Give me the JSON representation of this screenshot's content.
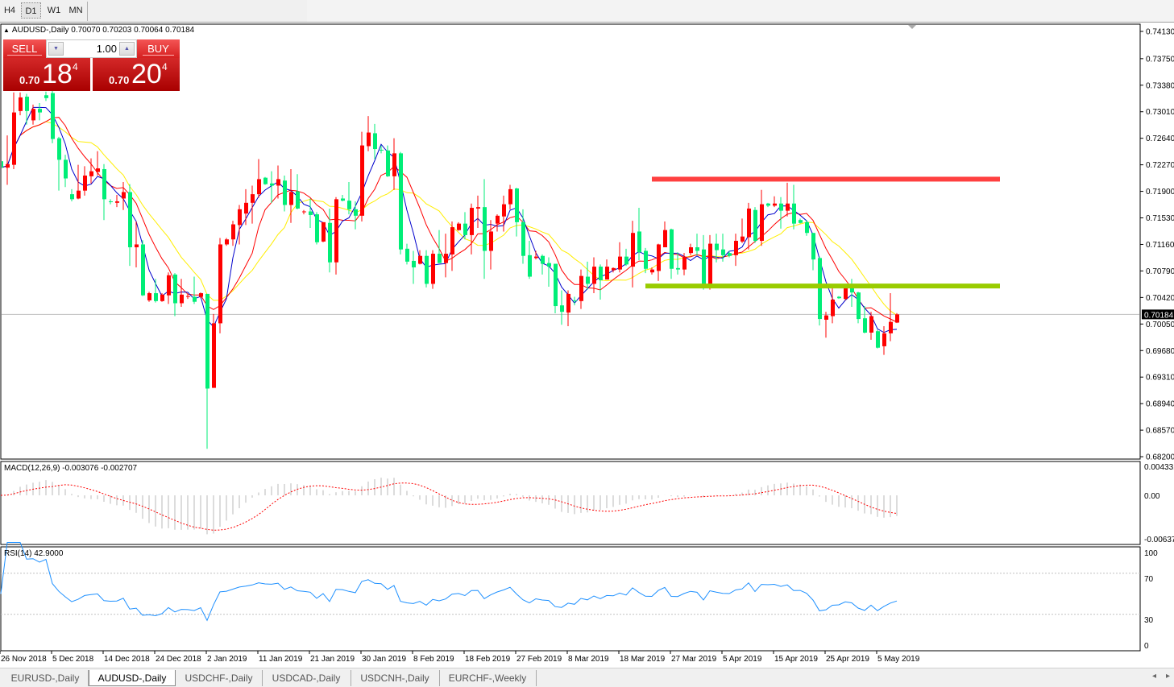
{
  "toolbar": {
    "timeframes": [
      {
        "label": "H4"
      },
      {
        "label": "D1",
        "active": true
      },
      {
        "label": "W1"
      },
      {
        "label": "MN"
      }
    ]
  },
  "chart": {
    "header": {
      "symbol": "AUDUSD-,Daily",
      "open": "0.70070",
      "high": "0.70203",
      "low": "0.70064",
      "close": "0.70184"
    },
    "trade_panel": {
      "sell_label": "SELL",
      "buy_label": "BUY",
      "lot": "1.00",
      "sell_prefix": "0.70",
      "sell_big": "18",
      "sell_sup": "4",
      "buy_prefix": "0.70",
      "buy_big": "20",
      "buy_sup": "4"
    },
    "current_price": "0.70184",
    "price_axis": [
      "0.74130",
      "0.73750",
      "0.73380",
      "0.73010",
      "0.72640",
      "0.72270",
      "0.71900",
      "0.71530",
      "0.71160",
      "0.70790",
      "0.70420",
      "0.70050",
      "0.69680",
      "0.69310",
      "0.68940",
      "0.68570",
      "0.68200"
    ],
    "macd": {
      "label": "MACD(12,26,9) -0.003076 -0.002707",
      "axis": [
        "0.004331",
        "0.00",
        "-0.00637"
      ]
    },
    "rsi": {
      "label": "RSI(14) 42.9000",
      "axis": [
        "100",
        "70",
        "30",
        "0"
      ],
      "levels": [
        70,
        30
      ]
    },
    "date_axis": [
      "26 Nov 2018",
      "5 Dec 2018",
      "14 Dec 2018",
      "24 Dec 2018",
      "2 Jan 2019",
      "11 Jan 2019",
      "21 Jan 2019",
      "30 Jan 2019",
      "8 Feb 2019",
      "18 Feb 2019",
      "27 Feb 2019",
      "8 Mar 2019",
      "18 Mar 2019",
      "27 Mar 2019",
      "5 Apr 2019",
      "15 Apr 2019",
      "25 Apr 2019",
      "5 May 2019"
    ],
    "horizontal_lines": [
      {
        "price": 0.7207,
        "color": "#ff4040",
        "from_bar": 101,
        "to_bar": 155
      },
      {
        "price": 0.7058,
        "color": "#99cc00",
        "from_bar": 100,
        "to_bar": 155
      }
    ],
    "colors": {
      "bull": "#ff0000",
      "bear": "#00ee77",
      "ma_fast": "#0000cc",
      "ma_mid": "#ff0000",
      "ma_slow": "#ffee00",
      "macd_hist": "#b8b8b8",
      "macd_signal": "#ff0000",
      "rsi": "#1e90ff"
    }
  },
  "chart_data": {
    "type": "candlestick",
    "symbol": "AUDUSD-,Daily",
    "ylim": [
      0.682,
      0.7413
    ],
    "ohlc": [
      [
        0.7232,
        0.7275,
        0.7212,
        0.7223
      ],
      [
        0.7223,
        0.7268,
        0.7199,
        0.7228
      ],
      [
        0.7227,
        0.7328,
        0.7221,
        0.73
      ],
      [
        0.7302,
        0.7328,
        0.7296,
        0.7321
      ],
      [
        0.7322,
        0.7326,
        0.7283,
        0.7302
      ],
      [
        0.7289,
        0.7311,
        0.7283,
        0.7305
      ],
      [
        0.7305,
        0.7313,
        0.7289,
        0.73
      ],
      [
        0.7324,
        0.7329,
        0.7316,
        0.732
      ],
      [
        0.7327,
        0.733,
        0.7257,
        0.7263
      ],
      [
        0.7264,
        0.7266,
        0.7191,
        0.7234
      ],
      [
        0.7234,
        0.7241,
        0.7196,
        0.7208
      ],
      [
        0.7186,
        0.7193,
        0.7176,
        0.7179
      ],
      [
        0.718,
        0.7227,
        0.7179,
        0.7191
      ],
      [
        0.7191,
        0.7225,
        0.7184,
        0.7212
      ],
      [
        0.7211,
        0.7236,
        0.7201,
        0.7218
      ],
      [
        0.7217,
        0.7246,
        0.7212,
        0.7222
      ],
      [
        0.7221,
        0.7228,
        0.715,
        0.7179
      ],
      [
        0.7176,
        0.7179,
        0.7172,
        0.7175
      ],
      [
        0.7174,
        0.7185,
        0.7168,
        0.7176
      ],
      [
        0.718,
        0.7203,
        0.7164,
        0.7189
      ],
      [
        0.7189,
        0.72,
        0.7086,
        0.7112
      ],
      [
        0.7112,
        0.7148,
        0.7084,
        0.7116
      ],
      [
        0.7116,
        0.7122,
        0.7044,
        0.7045
      ],
      [
        0.7038,
        0.705,
        0.7036,
        0.7048
      ],
      [
        0.7048,
        0.7068,
        0.7035,
        0.7037
      ],
      [
        0.7037,
        0.7048,
        0.7036,
        0.7046
      ],
      [
        0.7045,
        0.7077,
        0.7033,
        0.7073
      ],
      [
        0.7074,
        0.7076,
        0.7016,
        0.7034
      ],
      [
        0.7034,
        0.7068,
        0.7029,
        0.7046
      ],
      [
        0.7043,
        0.7047,
        0.704,
        0.7044
      ],
      [
        0.7043,
        0.7071,
        0.7033,
        0.7036
      ],
      [
        0.7043,
        0.7049,
        0.7041,
        0.7048
      ],
      [
        0.7047,
        0.7047,
        0.6831,
        0.6915
      ],
      [
        0.6916,
        0.7019,
        0.6916,
        0.7006
      ],
      [
        0.7006,
        0.7125,
        0.6992,
        0.7116
      ],
      [
        0.7116,
        0.7125,
        0.7114,
        0.7123
      ],
      [
        0.7123,
        0.7149,
        0.7114,
        0.7144
      ],
      [
        0.7143,
        0.7171,
        0.7116,
        0.7165
      ],
      [
        0.7159,
        0.7193,
        0.7143,
        0.7174
      ],
      [
        0.7174,
        0.7198,
        0.7145,
        0.7186
      ],
      [
        0.7186,
        0.7235,
        0.7181,
        0.7207
      ],
      [
        0.7209,
        0.721,
        0.7199,
        0.72
      ],
      [
        0.7201,
        0.7218,
        0.7174,
        0.7198
      ],
      [
        0.7198,
        0.7226,
        0.718,
        0.7207
      ],
      [
        0.7205,
        0.7212,
        0.7162,
        0.7171
      ],
      [
        0.7171,
        0.7221,
        0.7146,
        0.7189
      ],
      [
        0.719,
        0.7214,
        0.7165,
        0.7166
      ],
      [
        0.7161,
        0.7164,
        0.7158,
        0.7162
      ],
      [
        0.7162,
        0.718,
        0.7139,
        0.7157
      ],
      [
        0.7158,
        0.7161,
        0.7116,
        0.7119
      ],
      [
        0.712,
        0.7147,
        0.7119,
        0.7147
      ],
      [
        0.7146,
        0.7166,
        0.7077,
        0.7091
      ],
      [
        0.7091,
        0.7182,
        0.7074,
        0.7179
      ],
      [
        0.718,
        0.7185,
        0.7176,
        0.7177
      ],
      [
        0.7177,
        0.7203,
        0.7158,
        0.7165
      ],
      [
        0.7165,
        0.7176,
        0.7137,
        0.7156
      ],
      [
        0.7156,
        0.7273,
        0.7148,
        0.7254
      ],
      [
        0.7253,
        0.7295,
        0.7246,
        0.7272
      ],
      [
        0.7271,
        0.7284,
        0.7235,
        0.7249
      ],
      [
        0.7248,
        0.7254,
        0.7243,
        0.7247
      ],
      [
        0.7247,
        0.7254,
        0.721,
        0.7211
      ],
      [
        0.7211,
        0.7264,
        0.7192,
        0.7243
      ],
      [
        0.7243,
        0.7245,
        0.7102,
        0.7109
      ],
      [
        0.711,
        0.7117,
        0.7088,
        0.7092
      ],
      [
        0.7093,
        0.7107,
        0.7061,
        0.7084
      ],
      [
        0.7089,
        0.7108,
        0.7088,
        0.71
      ],
      [
        0.71,
        0.7108,
        0.7056,
        0.7061
      ],
      [
        0.7061,
        0.7108,
        0.7054,
        0.7103
      ],
      [
        0.7103,
        0.7136,
        0.709,
        0.709
      ],
      [
        0.709,
        0.7131,
        0.707,
        0.7103
      ],
      [
        0.7102,
        0.7148,
        0.7079,
        0.714
      ],
      [
        0.7136,
        0.7147,
        0.7135,
        0.7145
      ],
      [
        0.7145,
        0.7161,
        0.7123,
        0.7129
      ],
      [
        0.7129,
        0.7173,
        0.7102,
        0.7167
      ],
      [
        0.7166,
        0.7184,
        0.7139,
        0.7168
      ],
      [
        0.7168,
        0.7207,
        0.7068,
        0.7107
      ],
      [
        0.7107,
        0.715,
        0.7081,
        0.7134
      ],
      [
        0.7145,
        0.7158,
        0.7134,
        0.7156
      ],
      [
        0.7155,
        0.7184,
        0.7134,
        0.7172
      ],
      [
        0.7172,
        0.7199,
        0.7165,
        0.7193
      ],
      [
        0.7194,
        0.7195,
        0.7127,
        0.7147
      ],
      [
        0.7147,
        0.7165,
        0.7089,
        0.71
      ],
      [
        0.7101,
        0.7121,
        0.7068,
        0.7071
      ],
      [
        0.7097,
        0.7107,
        0.7095,
        0.7099
      ],
      [
        0.71,
        0.7102,
        0.7074,
        0.7089
      ],
      [
        0.709,
        0.7098,
        0.7057,
        0.7085
      ],
      [
        0.7089,
        0.7089,
        0.702,
        0.703
      ],
      [
        0.7031,
        0.7052,
        0.7004,
        0.7022
      ],
      [
        0.7021,
        0.7052,
        0.7002,
        0.7047
      ],
      [
        0.7038,
        0.7043,
        0.7031,
        0.7037
      ],
      [
        0.7037,
        0.7081,
        0.7026,
        0.7072
      ],
      [
        0.7071,
        0.7092,
        0.7053,
        0.7061
      ],
      [
        0.7061,
        0.7098,
        0.7048,
        0.7085
      ],
      [
        0.7085,
        0.7088,
        0.7039,
        0.7066
      ],
      [
        0.7067,
        0.7095,
        0.7067,
        0.7085
      ],
      [
        0.708,
        0.7084,
        0.7077,
        0.7083
      ],
      [
        0.7081,
        0.7119,
        0.7077,
        0.7099
      ],
      [
        0.7099,
        0.711,
        0.7086,
        0.7088
      ],
      [
        0.7085,
        0.7149,
        0.7056,
        0.7132
      ],
      [
        0.7134,
        0.7167,
        0.7094,
        0.7105
      ],
      [
        0.7107,
        0.7111,
        0.7076,
        0.7082
      ],
      [
        0.7077,
        0.7084,
        0.7074,
        0.7081
      ],
      [
        0.7079,
        0.7117,
        0.7065,
        0.7116
      ],
      [
        0.7112,
        0.7148,
        0.7112,
        0.7136
      ],
      [
        0.7137,
        0.7138,
        0.7068,
        0.7082
      ],
      [
        0.7083,
        0.7105,
        0.7074,
        0.7081
      ],
      [
        0.7081,
        0.7104,
        0.7073,
        0.7099
      ],
      [
        0.7104,
        0.7117,
        0.7101,
        0.7112
      ],
      [
        0.7112,
        0.7131,
        0.7101,
        0.7107
      ],
      [
        0.7109,
        0.7129,
        0.7053,
        0.7061
      ],
      [
        0.7061,
        0.7129,
        0.7053,
        0.7117
      ],
      [
        0.7117,
        0.7131,
        0.7091,
        0.7108
      ],
      [
        0.7109,
        0.7131,
        0.7092,
        0.7101
      ],
      [
        0.7104,
        0.7107,
        0.7098,
        0.71
      ],
      [
        0.7101,
        0.7131,
        0.7086,
        0.7121
      ],
      [
        0.712,
        0.7152,
        0.7118,
        0.7127
      ],
      [
        0.7126,
        0.7174,
        0.7109,
        0.7166
      ],
      [
        0.7164,
        0.7168,
        0.7118,
        0.7121
      ],
      [
        0.7121,
        0.7192,
        0.7114,
        0.7172
      ],
      [
        0.7173,
        0.7174,
        0.7168,
        0.717
      ],
      [
        0.717,
        0.7183,
        0.7168,
        0.7173
      ],
      [
        0.7173,
        0.7182,
        0.7138,
        0.7163
      ],
      [
        0.7163,
        0.7202,
        0.7155,
        0.7173
      ],
      [
        0.7173,
        0.7199,
        0.7137,
        0.7145
      ],
      [
        0.715,
        0.7152,
        0.7145,
        0.7146
      ],
      [
        0.7147,
        0.715,
        0.7128,
        0.7132
      ],
      [
        0.7132,
        0.7132,
        0.708,
        0.7095
      ],
      [
        0.7097,
        0.7099,
        0.7003,
        0.7012
      ],
      [
        0.7011,
        0.7022,
        0.6986,
        0.7017
      ],
      [
        0.7016,
        0.7055,
        0.7006,
        0.7039
      ],
      [
        0.7043,
        0.7044,
        0.704,
        0.7041
      ],
      [
        0.704,
        0.7058,
        0.7038,
        0.7055
      ],
      [
        0.7058,
        0.7068,
        0.7029,
        0.7049
      ],
      [
        0.7049,
        0.705,
        0.7006,
        0.7012
      ],
      [
        0.7013,
        0.703,
        0.6992,
        0.6993
      ],
      [
        0.6993,
        0.7022,
        0.6983,
        0.7016
      ],
      [
        0.6995,
        0.6997,
        0.6971,
        0.6972
      ],
      [
        0.6974,
        0.7002,
        0.6962,
        0.6992
      ],
      [
        0.6992,
        0.7048,
        0.6981,
        0.7008
      ],
      [
        0.7007,
        0.70203,
        0.70064,
        0.70184
      ]
    ]
  },
  "tabs": [
    {
      "label": "EURUSD-,Daily"
    },
    {
      "label": "AUDUSD-,Daily",
      "active": true
    },
    {
      "label": "USDCHF-,Daily"
    },
    {
      "label": "USDCAD-,Daily"
    },
    {
      "label": "USDCNH-,Daily"
    },
    {
      "label": "EURCHF-,Weekly"
    }
  ],
  "tab_scroll": {
    "left_icon": "scroll-left-arrow",
    "right_icon": "scroll-right-arrow"
  }
}
